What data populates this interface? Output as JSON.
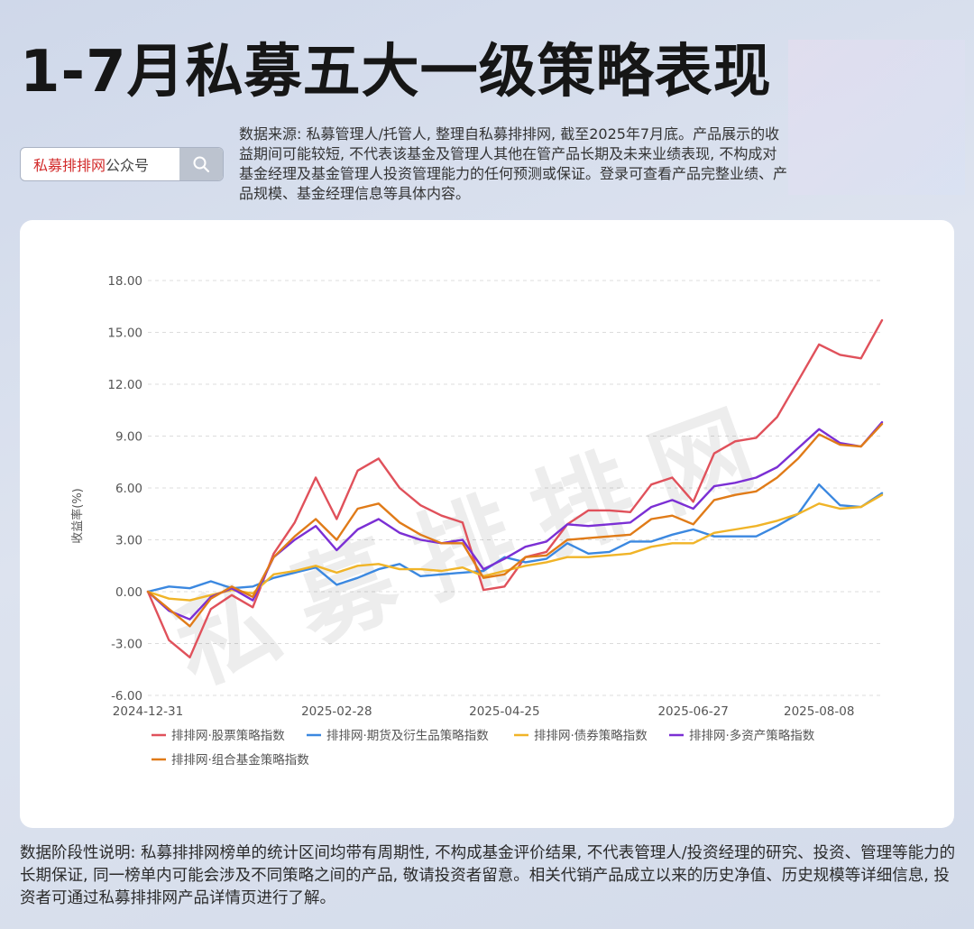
{
  "header": {
    "title": "1-7月私募五大一级策略表现",
    "search_brand": "私募排排网",
    "search_suffix": "公众号",
    "source_note": "数据来源: 私募管理人/托管人, 整理自私募排排网, 截至2025年7月底。产品展示的收益期间可能较短, 不代表该基金及管理人其他在管产品长期及未来业绩表现, 不构成对基金经理及基金管理人投资管理能力的任何预测或保证。登录可查看产品完整业绩、产品规模、基金经理信息等具体内容。"
  },
  "watermark": "私募排排网",
  "footer": {
    "note": "数据阶段性说明: 私募排排网榜单的统计区间均带有周期性, 不构成基金评价结果, 不代表管理人/投资经理的研究、投资、管理等能力的长期保证, 同一榜单内可能会涉及不同策略之间的产品, 敬请投资者留意。相关代销产品成立以来的历史净值、历史规模等详细信息, 投资者可通过私募排排网产品详情页进行了解。"
  },
  "chart_data": {
    "type": "line",
    "title": "",
    "xlabel": "",
    "ylabel": "收益率(%)",
    "ylim": [
      -6,
      18
    ],
    "yticks": [
      "18.00",
      "15.00",
      "12.00",
      "9.00",
      "6.00",
      "3.00",
      "0.00",
      "-3.00",
      "-6.00"
    ],
    "xticks": [
      {
        "label": "2024-12-31",
        "index": 0
      },
      {
        "label": "2025-02-28",
        "index": 9
      },
      {
        "label": "2025-04-25",
        "index": 17
      },
      {
        "label": "2025-06-27",
        "index": 26
      },
      {
        "label": "2025-08-08",
        "index": 32
      }
    ],
    "grid": "horizontal-dashed",
    "legend_position": "bottom-left",
    "point_count": 36,
    "series": [
      {
        "name": "排排网·股票策略指数",
        "color": "#e0515b",
        "values": [
          0,
          -2.8,
          -3.8,
          -1.0,
          -0.2,
          -0.9,
          2.2,
          4.0,
          6.6,
          4.2,
          7.0,
          7.7,
          6.0,
          5.0,
          4.4,
          4.0,
          0.1,
          0.3,
          2.0,
          2.3,
          3.9,
          4.7,
          4.7,
          4.6,
          6.2,
          6.6,
          5.2,
          8.0,
          8.7,
          8.9,
          10.1,
          12.2,
          14.3,
          13.7,
          13.5,
          15.7
        ]
      },
      {
        "name": "排排网·期货及衍生品策略指数",
        "color": "#3b88e0",
        "values": [
          0,
          0.3,
          0.2,
          0.6,
          0.2,
          0.3,
          0.8,
          1.1,
          1.4,
          0.4,
          0.8,
          1.3,
          1.6,
          0.9,
          1.0,
          1.1,
          1.2,
          2.0,
          1.7,
          1.9,
          2.8,
          2.2,
          2.3,
          2.9,
          2.9,
          3.3,
          3.6,
          3.2,
          3.2,
          3.2,
          3.8,
          4.5,
          6.2,
          5.0,
          4.9,
          5.7
        ]
      },
      {
        "name": "排排网·债券策略指数",
        "color": "#f0b428",
        "values": [
          0,
          -0.4,
          -0.5,
          -0.2,
          0.1,
          -0.1,
          1.0,
          1.2,
          1.5,
          1.1,
          1.5,
          1.6,
          1.3,
          1.3,
          1.2,
          1.4,
          0.9,
          1.2,
          1.5,
          1.7,
          2.0,
          2.0,
          2.1,
          2.2,
          2.6,
          2.8,
          2.8,
          3.4,
          3.6,
          3.8,
          4.1,
          4.5,
          5.1,
          4.8,
          4.9,
          5.6
        ]
      },
      {
        "name": "排排网·多资产策略指数",
        "color": "#7b2fd4",
        "values": [
          0,
          -1.1,
          -1.6,
          -0.3,
          0.2,
          -0.5,
          2.0,
          3.0,
          3.8,
          2.4,
          3.6,
          4.2,
          3.4,
          3.0,
          2.8,
          3.0,
          1.3,
          1.9,
          2.6,
          2.9,
          3.9,
          3.8,
          3.9,
          4.0,
          4.9,
          5.3,
          4.8,
          6.1,
          6.3,
          6.6,
          7.2,
          8.3,
          9.4,
          8.6,
          8.4,
          9.8
        ]
      },
      {
        "name": "排排网·组合基金策略指数",
        "color": "#e07b18",
        "values": [
          0,
          -1.0,
          -2.0,
          -0.4,
          0.3,
          -0.3,
          2.0,
          3.2,
          4.2,
          3.0,
          4.8,
          5.1,
          4.0,
          3.3,
          2.8,
          2.8,
          0.8,
          1.0,
          2.0,
          2.1,
          3.0,
          3.1,
          3.2,
          3.3,
          4.2,
          4.4,
          3.9,
          5.3,
          5.6,
          5.8,
          6.6,
          7.7,
          9.1,
          8.5,
          8.4,
          9.7
        ]
      }
    ]
  }
}
